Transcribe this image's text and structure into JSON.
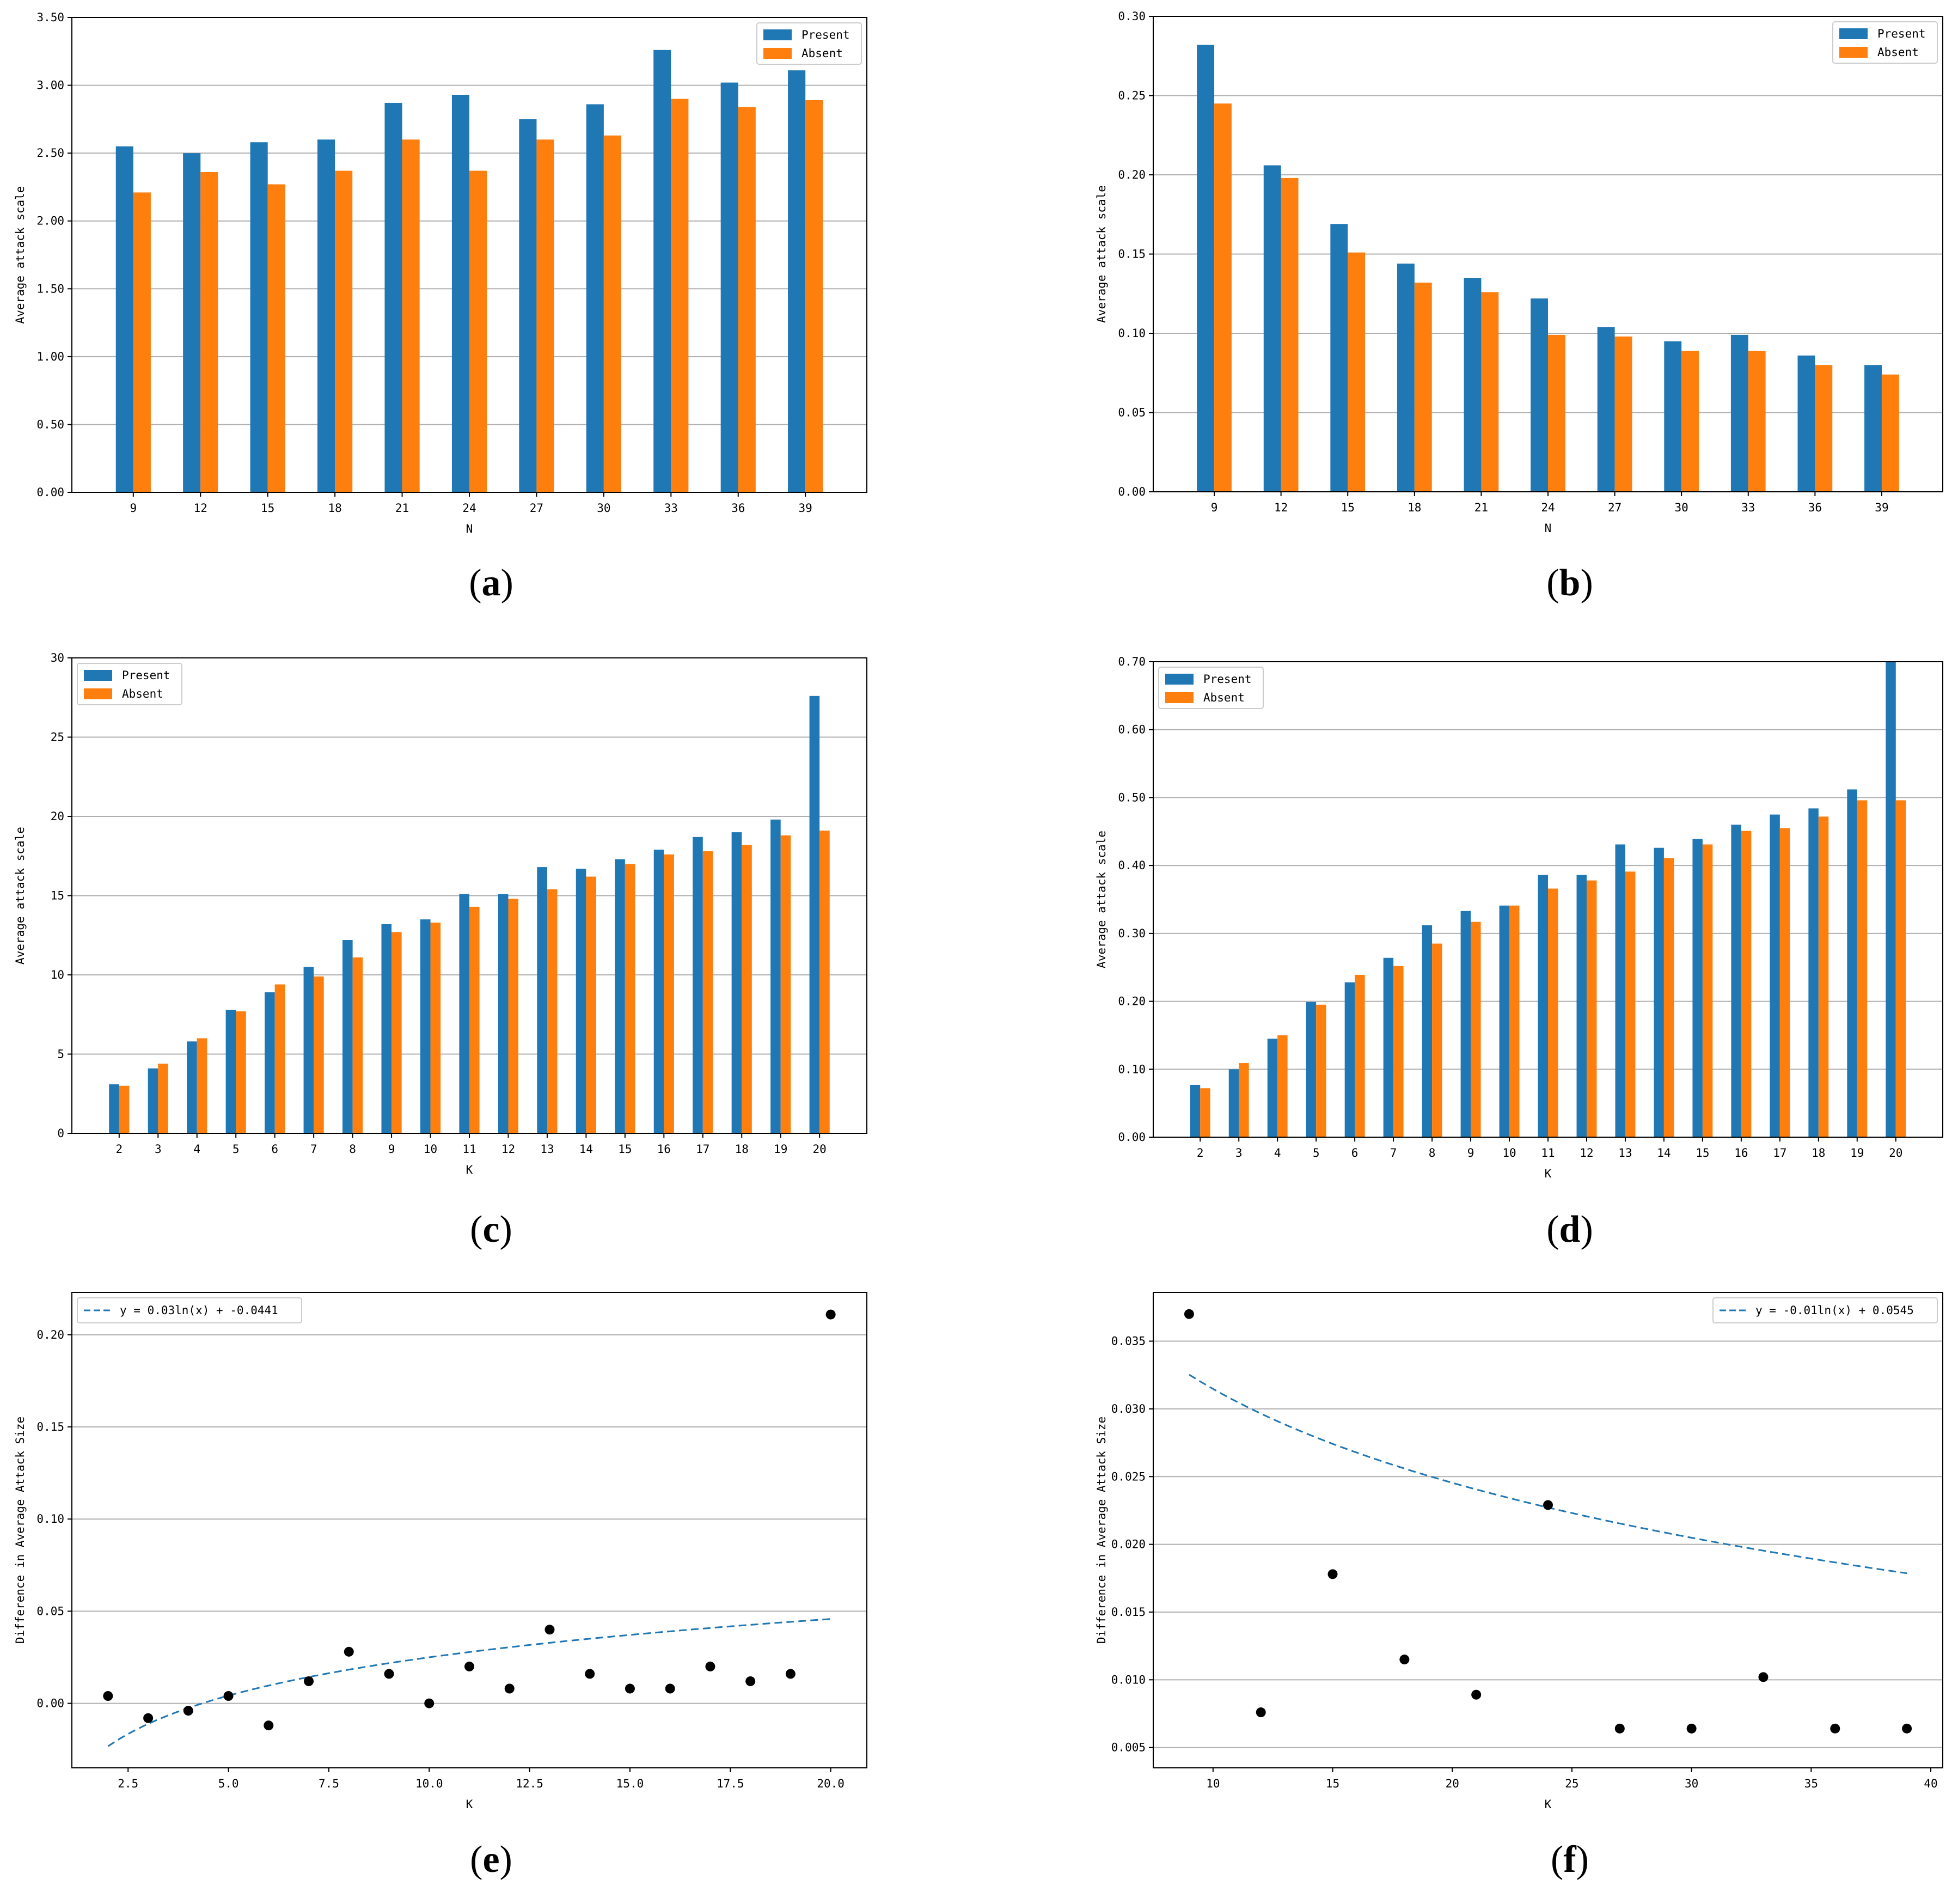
{
  "colors": {
    "present": "#1f77b4",
    "absent": "#ff7f0e",
    "grid": "#b0b0b0",
    "axis": "#000000",
    "point": "#000000",
    "fit": "#1f77b4"
  },
  "panels": [
    {
      "label": "(a)",
      "letter": "a"
    },
    {
      "label": "(b)",
      "letter": "b"
    },
    {
      "label": "(c)",
      "letter": "c"
    },
    {
      "label": "(d)",
      "letter": "d"
    },
    {
      "label": "(e)",
      "letter": "e"
    },
    {
      "label": "(f)",
      "letter": "f"
    }
  ],
  "chart_data": [
    {
      "id": "a",
      "type": "bar",
      "xlabel": "N",
      "ylabel": "Average attack scale",
      "categories": [
        "9",
        "12",
        "15",
        "18",
        "21",
        "24",
        "27",
        "30",
        "33",
        "36",
        "39"
      ],
      "series": [
        {
          "name": "Present",
          "values": [
            2.55,
            2.5,
            2.58,
            2.6,
            2.87,
            2.93,
            2.75,
            2.86,
            3.26,
            3.02,
            3.11
          ]
        },
        {
          "name": "Absent",
          "values": [
            2.21,
            2.36,
            2.27,
            2.37,
            2.6,
            2.37,
            2.6,
            2.63,
            2.9,
            2.84,
            2.89
          ]
        }
      ],
      "ylim": [
        0,
        3.5
      ],
      "yticks": [
        0,
        0.5,
        1.0,
        1.5,
        2.0,
        2.5,
        3.0,
        3.5
      ],
      "ytick_labels": [
        "0.00",
        "0.50",
        "1.00",
        "1.50",
        "2.00",
        "2.50",
        "3.00",
        "3.50"
      ],
      "legend": "top-right",
      "grid": "horizontal"
    },
    {
      "id": "b",
      "type": "bar",
      "xlabel": "N",
      "ylabel": "Average attack scale",
      "categories": [
        "9",
        "12",
        "15",
        "18",
        "21",
        "24",
        "27",
        "30",
        "33",
        "36",
        "39"
      ],
      "series": [
        {
          "name": "Present",
          "values": [
            0.282,
            0.206,
            0.169,
            0.144,
            0.135,
            0.122,
            0.104,
            0.095,
            0.099,
            0.086,
            0.08
          ]
        },
        {
          "name": "Absent",
          "values": [
            0.245,
            0.198,
            0.151,
            0.132,
            0.126,
            0.099,
            0.098,
            0.089,
            0.089,
            0.08,
            0.074
          ]
        }
      ],
      "ylim": [
        0,
        0.3
      ],
      "yticks": [
        0,
        0.05,
        0.1,
        0.15,
        0.2,
        0.25,
        0.3
      ],
      "ytick_labels": [
        "0.00",
        "0.05",
        "0.10",
        "0.15",
        "0.20",
        "0.25",
        "0.30"
      ],
      "legend": "top-right",
      "grid": "horizontal"
    },
    {
      "id": "c",
      "type": "bar",
      "xlabel": "K",
      "ylabel": "Average attack scale",
      "categories": [
        "2",
        "3",
        "4",
        "5",
        "6",
        "7",
        "8",
        "9",
        "10",
        "11",
        "12",
        "13",
        "14",
        "15",
        "16",
        "17",
        "18",
        "19",
        "20"
      ],
      "series": [
        {
          "name": "Present",
          "values": [
            3.1,
            4.1,
            5.8,
            7.8,
            8.9,
            10.5,
            12.2,
            13.2,
            13.5,
            15.1,
            15.1,
            16.8,
            16.7,
            17.3,
            17.9,
            18.7,
            19.0,
            19.8,
            27.6
          ]
        },
        {
          "name": "Absent",
          "values": [
            3.0,
            4.4,
            6.0,
            7.7,
            9.4,
            9.9,
            11.1,
            12.7,
            13.3,
            14.3,
            14.8,
            15.4,
            16.2,
            17.0,
            17.6,
            17.8,
            18.2,
            18.8,
            19.1
          ]
        }
      ],
      "ylim": [
        0,
        30
      ],
      "yticks": [
        0,
        5,
        10,
        15,
        20,
        25,
        30
      ],
      "ytick_labels": [
        "0",
        "5",
        "10",
        "15",
        "20",
        "25",
        "30"
      ],
      "legend": "top-left",
      "grid": "horizontal"
    },
    {
      "id": "d",
      "type": "bar",
      "xlabel": "K",
      "ylabel": "Average attack scale",
      "categories": [
        "2",
        "3",
        "4",
        "5",
        "6",
        "7",
        "8",
        "9",
        "10",
        "11",
        "12",
        "13",
        "14",
        "15",
        "16",
        "17",
        "18",
        "19",
        "20"
      ],
      "series": [
        {
          "name": "Present",
          "values": [
            0.077,
            0.1,
            0.145,
            0.199,
            0.228,
            0.264,
            0.312,
            0.333,
            0.341,
            0.386,
            0.386,
            0.431,
            0.426,
            0.439,
            0.46,
            0.475,
            0.484,
            0.512,
            0.7
          ]
        },
        {
          "name": "Absent",
          "values": [
            0.072,
            0.109,
            0.15,
            0.195,
            0.239,
            0.252,
            0.285,
            0.317,
            0.341,
            0.366,
            0.378,
            0.391,
            0.411,
            0.431,
            0.451,
            0.455,
            0.472,
            0.496,
            0.496
          ]
        }
      ],
      "ylim": [
        0,
        0.7
      ],
      "yticks": [
        0,
        0.1,
        0.2,
        0.3,
        0.4,
        0.5,
        0.6,
        0.7
      ],
      "ytick_labels": [
        "0.00",
        "0.10",
        "0.20",
        "0.30",
        "0.40",
        "0.50",
        "0.60",
        "0.70"
      ],
      "legend": "top-left",
      "grid": "horizontal"
    },
    {
      "id": "e",
      "type": "scatter",
      "xlabel": "K",
      "ylabel": "Difference in Average Attack Size",
      "x": [
        2,
        3,
        4,
        5,
        6,
        7,
        8,
        9,
        10,
        11,
        12,
        13,
        14,
        15,
        16,
        17,
        18,
        19,
        20
      ],
      "y": [
        0.004,
        -0.008,
        -0.004,
        0.004,
        -0.012,
        0.012,
        0.028,
        0.016,
        0.0,
        0.02,
        0.008,
        0.04,
        0.016,
        0.008,
        0.008,
        0.02,
        0.012,
        0.016,
        0.211
      ],
      "fit": {
        "label": "y = 0.03ln(x) + -0.0441",
        "a": 0.03,
        "b": -0.0441,
        "x_range": [
          2,
          20
        ]
      },
      "xlim": [
        1.1,
        20.9
      ],
      "ylim": [
        -0.035,
        0.223
      ],
      "xticks": [
        2.5,
        5.0,
        7.5,
        10.0,
        12.5,
        15.0,
        17.5,
        20.0
      ],
      "xtick_labels": [
        "2.5",
        "5.0",
        "7.5",
        "10.0",
        "12.5",
        "15.0",
        "17.5",
        "20.0"
      ],
      "yticks": [
        0,
        0.05,
        0.1,
        0.15,
        0.2
      ],
      "ytick_labels": [
        "0.00",
        "0.05",
        "0.10",
        "0.15",
        "0.20"
      ],
      "legend": "top-left",
      "grid": "horizontal"
    },
    {
      "id": "f",
      "type": "scatter",
      "xlabel": "K",
      "ylabel": "Difference in Average Attack Size",
      "x": [
        9,
        12,
        15,
        18,
        21,
        24,
        27,
        30,
        33,
        36,
        39
      ],
      "y": [
        0.037,
        0.0076,
        0.0178,
        0.0115,
        0.0089,
        0.0229,
        0.0064,
        0.0064,
        0.0102,
        0.0064,
        0.0064
      ],
      "fit": {
        "label": "y = -0.01ln(x) + 0.0545",
        "a": -0.01,
        "b": 0.0545,
        "x_range": [
          9,
          39
        ]
      },
      "xlim": [
        7.5,
        40.5
      ],
      "ylim": [
        0.0035,
        0.0386
      ],
      "xticks": [
        10,
        15,
        20,
        25,
        30,
        35,
        40
      ],
      "xtick_labels": [
        "10",
        "15",
        "20",
        "25",
        "30",
        "35",
        "40"
      ],
      "yticks": [
        0.005,
        0.01,
        0.015,
        0.02,
        0.025,
        0.03,
        0.035
      ],
      "ytick_labels": [
        "0.005",
        "0.010",
        "0.015",
        "0.020",
        "0.025",
        "0.030",
        "0.035"
      ],
      "legend": "top-right",
      "grid": "horizontal"
    }
  ]
}
